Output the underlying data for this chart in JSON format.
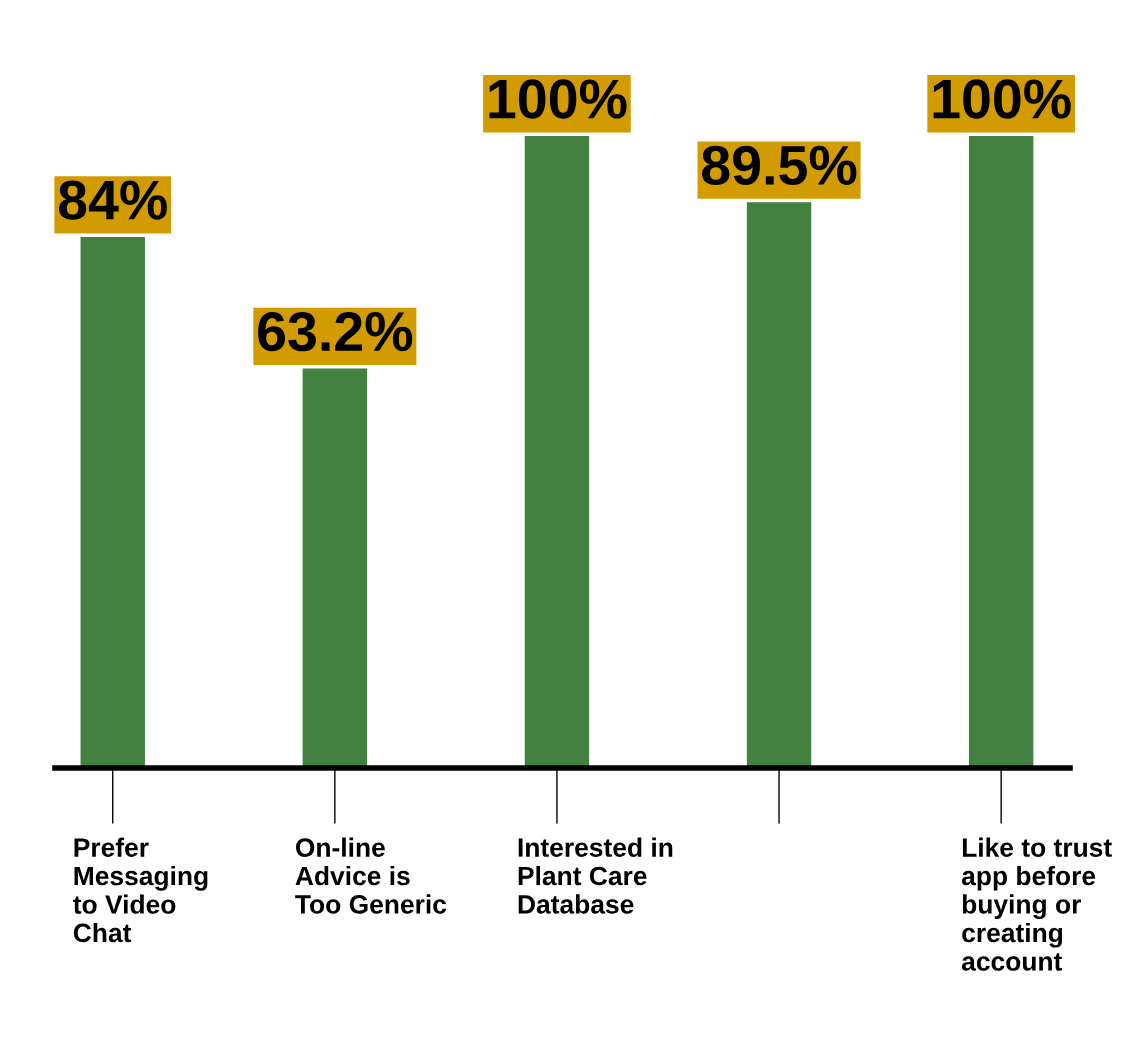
{
  "chart_data": {
    "type": "bar",
    "ylim": [
      0,
      100
    ],
    "categories": [
      "Prefer\nMessaging\nto Video\nChat",
      "On-line\nAdvice is\nToo Generic",
      "Interested in\nPlant Care\nDatabase",
      null,
      "Like to trust\napp before\nbuying or\ncreating\naccount"
    ],
    "values": [
      84,
      63.2,
      100,
      89.5,
      100
    ],
    "value_labels": [
      "84%",
      "63.2%",
      "100%",
      "89.5%",
      "100%"
    ],
    "color": "#42813f",
    "grid": false,
    "legend": false
  }
}
